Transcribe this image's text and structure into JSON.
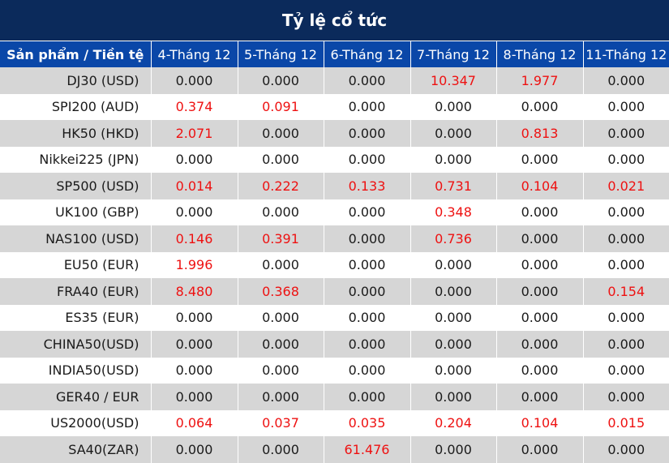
{
  "title": "Tỷ lệ cổ tức",
  "colors": {
    "title_bg": "#0b2a5b",
    "header_bg": "#0a47a8",
    "nonzero_text": "#ee1111",
    "zero_text": "#1a1a1a",
    "stripe": "#d6d6d6"
  },
  "headers": [
    "Sản phẩm / Tiền tệ",
    "4-Tháng 12",
    "5-Tháng 12",
    "6-Tháng 12",
    "7-Tháng 12",
    "8-Tháng 12",
    "11-Tháng 12"
  ],
  "rows": [
    {
      "product": "DJ30 (USD)",
      "values": [
        "0.000",
        "0.000",
        "0.000",
        "10.347",
        "1.977",
        "0.000"
      ]
    },
    {
      "product": "SPI200 (AUD)",
      "values": [
        "0.374",
        "0.091",
        "0.000",
        "0.000",
        "0.000",
        "0.000"
      ]
    },
    {
      "product": "HK50 (HKD)",
      "values": [
        "2.071",
        "0.000",
        "0.000",
        "0.000",
        "0.813",
        "0.000"
      ]
    },
    {
      "product": "Nikkei225 (JPN)",
      "values": [
        "0.000",
        "0.000",
        "0.000",
        "0.000",
        "0.000",
        "0.000"
      ]
    },
    {
      "product": "SP500 (USD)",
      "values": [
        "0.014",
        "0.222",
        "0.133",
        "0.731",
        "0.104",
        "0.021"
      ]
    },
    {
      "product": "UK100 (GBP)",
      "values": [
        "0.000",
        "0.000",
        "0.000",
        "0.348",
        "0.000",
        "0.000"
      ]
    },
    {
      "product": "NAS100 (USD)",
      "values": [
        "0.146",
        "0.391",
        "0.000",
        "0.736",
        "0.000",
        "0.000"
      ]
    },
    {
      "product": "EU50 (EUR)",
      "values": [
        "1.996",
        "0.000",
        "0.000",
        "0.000",
        "0.000",
        "0.000"
      ]
    },
    {
      "product": "FRA40 (EUR)",
      "values": [
        "8.480",
        "0.368",
        "0.000",
        "0.000",
        "0.000",
        "0.154"
      ]
    },
    {
      "product": "ES35 (EUR)",
      "values": [
        "0.000",
        "0.000",
        "0.000",
        "0.000",
        "0.000",
        "0.000"
      ]
    },
    {
      "product": "CHINA50(USD)",
      "values": [
        "0.000",
        "0.000",
        "0.000",
        "0.000",
        "0.000",
        "0.000"
      ]
    },
    {
      "product": "INDIA50(USD)",
      "values": [
        "0.000",
        "0.000",
        "0.000",
        "0.000",
        "0.000",
        "0.000"
      ]
    },
    {
      "product": "GER40 / EUR",
      "values": [
        "0.000",
        "0.000",
        "0.000",
        "0.000",
        "0.000",
        "0.000"
      ]
    },
    {
      "product": "US2000(USD)",
      "values": [
        "0.064",
        "0.037",
        "0.035",
        "0.204",
        "0.104",
        "0.015"
      ]
    },
    {
      "product": "SA40(ZAR)",
      "values": [
        "0.000",
        "0.000",
        "61.476",
        "0.000",
        "0.000",
        "0.000"
      ]
    }
  ]
}
